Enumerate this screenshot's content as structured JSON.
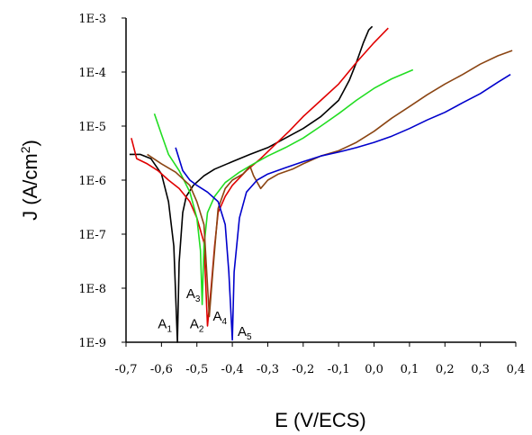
{
  "chart_data": {
    "type": "line",
    "title": "",
    "xlabel": "E (V/ECS)",
    "ylabel_main": "J (A/cm",
    "ylabel_sup": "2",
    "ylabel_close": ")",
    "x_scale": "linear",
    "y_scale": "log",
    "xlim": [
      -0.7,
      0.4
    ],
    "ylim": [
      1e-09,
      0.001
    ],
    "x_ticks": [
      -0.7,
      -0.6,
      -0.5,
      -0.4,
      -0.3,
      -0.2,
      -0.1,
      0.0,
      0.1,
      0.2,
      0.3,
      0.4
    ],
    "x_tick_labels": [
      "-0,7",
      "-0,6",
      "-0,5",
      "-0,4",
      "-0,3",
      "-0,2",
      "-0,1",
      "0,0",
      "0,1",
      "0,2",
      "0,3",
      "0,4"
    ],
    "y_ticks": [
      1e-09,
      1e-08,
      1e-07,
      1e-06,
      1e-05,
      0.0001,
      0.001
    ],
    "y_tick_labels": [
      "1E-9",
      "1E-8",
      "1E-7",
      "1E-6",
      "1E-5",
      "1E-4",
      "1E-3"
    ],
    "grid": false,
    "legend": "none",
    "series": [
      {
        "color": "#000000",
        "points": [
          [
            -0.69,
            3e-06
          ],
          [
            -0.66,
            3e-06
          ],
          [
            -0.63,
            2.5e-06
          ],
          [
            -0.6,
            1.3e-06
          ],
          [
            -0.58,
            4e-07
          ],
          [
            -0.565,
            6e-08
          ],
          [
            -0.555,
            1e-09
          ],
          [
            -0.55,
            3e-08
          ],
          [
            -0.54,
            2.5e-07
          ],
          [
            -0.53,
            5e-07
          ],
          [
            -0.51,
            8e-07
          ],
          [
            -0.48,
            1.2e-06
          ],
          [
            -0.45,
            1.6e-06
          ],
          [
            -0.4,
            2.2e-06
          ],
          [
            -0.35,
            3e-06
          ],
          [
            -0.3,
            4e-06
          ],
          [
            -0.25,
            6e-06
          ],
          [
            -0.2,
            9e-06
          ],
          [
            -0.15,
            1.5e-05
          ],
          [
            -0.1,
            3e-05
          ],
          [
            -0.07,
            7e-05
          ],
          [
            -0.05,
            0.00015
          ],
          [
            -0.03,
            0.00035
          ],
          [
            -0.015,
            0.0006
          ],
          [
            -0.005,
            0.0007
          ]
        ]
      },
      {
        "color": "#e00000",
        "points": [
          [
            -0.685,
            6e-06
          ],
          [
            -0.67,
            2.5e-06
          ],
          [
            -0.64,
            2e-06
          ],
          [
            -0.61,
            1.5e-06
          ],
          [
            -0.58,
            1e-06
          ],
          [
            -0.55,
            7e-07
          ],
          [
            -0.52,
            4e-07
          ],
          [
            -0.5,
            2e-07
          ],
          [
            -0.48,
            7e-08
          ],
          [
            -0.47,
            2e-09
          ],
          [
            -0.46,
            1e-08
          ],
          [
            -0.45,
            6e-08
          ],
          [
            -0.44,
            2.5e-07
          ],
          [
            -0.42,
            5e-07
          ],
          [
            -0.4,
            8e-07
          ],
          [
            -0.36,
            1.5e-06
          ],
          [
            -0.32,
            2.5e-06
          ],
          [
            -0.28,
            4.5e-06
          ],
          [
            -0.24,
            8e-06
          ],
          [
            -0.2,
            1.5e-05
          ],
          [
            -0.15,
            3e-05
          ],
          [
            -0.1,
            6e-05
          ],
          [
            -0.05,
            0.00015
          ],
          [
            0.0,
            0.00035
          ],
          [
            0.04,
            0.00065
          ]
        ]
      },
      {
        "color": "#22dd22",
        "points": [
          [
            -0.62,
            1.7e-05
          ],
          [
            -0.6,
            7e-06
          ],
          [
            -0.58,
            3e-06
          ],
          [
            -0.55,
            1.5e-06
          ],
          [
            -0.52,
            6e-07
          ],
          [
            -0.5,
            2e-07
          ],
          [
            -0.49,
            5e-08
          ],
          [
            -0.485,
            5e-09
          ],
          [
            -0.48,
            6e-08
          ],
          [
            -0.47,
            2.5e-07
          ],
          [
            -0.45,
            5e-07
          ],
          [
            -0.42,
            9e-07
          ],
          [
            -0.38,
            1.4e-06
          ],
          [
            -0.34,
            2e-06
          ],
          [
            -0.3,
            2.8e-06
          ],
          [
            -0.25,
            4e-06
          ],
          [
            -0.2,
            6e-06
          ],
          [
            -0.15,
            1e-05
          ],
          [
            -0.1,
            1.7e-05
          ],
          [
            -0.05,
            3e-05
          ],
          [
            0.0,
            5e-05
          ],
          [
            0.05,
            7.5e-05
          ],
          [
            0.11,
            0.00011
          ]
        ]
      },
      {
        "color": "#8b4513",
        "points": [
          [
            -0.64,
            3e-06
          ],
          [
            -0.6,
            2e-06
          ],
          [
            -0.56,
            1.4e-06
          ],
          [
            -0.52,
            8e-07
          ],
          [
            -0.5,
            4e-07
          ],
          [
            -0.48,
            1.5e-07
          ],
          [
            -0.465,
            3e-09
          ],
          [
            -0.455,
            2e-08
          ],
          [
            -0.44,
            3e-07
          ],
          [
            -0.42,
            7e-07
          ],
          [
            -0.4,
            1e-06
          ],
          [
            -0.37,
            1.3e-06
          ],
          [
            -0.35,
            1.8e-06
          ],
          [
            -0.34,
            1.2e-06
          ],
          [
            -0.32,
            7e-07
          ],
          [
            -0.3,
            1e-06
          ],
          [
            -0.27,
            1.3e-06
          ],
          [
            -0.23,
            1.6e-06
          ],
          [
            -0.2,
            2e-06
          ],
          [
            -0.15,
            2.8e-06
          ],
          [
            -0.1,
            3.5e-06
          ],
          [
            -0.05,
            5e-06
          ],
          [
            0.0,
            8e-06
          ],
          [
            0.05,
            1.4e-05
          ],
          [
            0.1,
            2.3e-05
          ],
          [
            0.15,
            3.8e-05
          ],
          [
            0.2,
            6e-05
          ],
          [
            0.25,
            9e-05
          ],
          [
            0.3,
            0.00014
          ],
          [
            0.35,
            0.0002
          ],
          [
            0.39,
            0.00025
          ]
        ]
      },
      {
        "color": "#0000cc",
        "points": [
          [
            -0.56,
            4e-06
          ],
          [
            -0.54,
            1.5e-06
          ],
          [
            -0.52,
            1e-06
          ],
          [
            -0.5,
            8e-07
          ],
          [
            -0.47,
            6e-07
          ],
          [
            -0.44,
            4e-07
          ],
          [
            -0.42,
            1.5e-07
          ],
          [
            -0.41,
            2e-08
          ],
          [
            -0.4,
            1.1e-09
          ],
          [
            -0.395,
            2e-08
          ],
          [
            -0.38,
            2e-07
          ],
          [
            -0.36,
            6e-07
          ],
          [
            -0.33,
            1e-06
          ],
          [
            -0.3,
            1.3e-06
          ],
          [
            -0.25,
            1.7e-06
          ],
          [
            -0.2,
            2.2e-06
          ],
          [
            -0.15,
            2.8e-06
          ],
          [
            -0.1,
            3.3e-06
          ],
          [
            -0.05,
            4e-06
          ],
          [
            0.0,
            5e-06
          ],
          [
            0.05,
            6.5e-06
          ],
          [
            0.1,
            9e-06
          ],
          [
            0.15,
            1.3e-05
          ],
          [
            0.2,
            1.8e-05
          ],
          [
            0.25,
            2.7e-05
          ],
          [
            0.3,
            4e-05
          ],
          [
            0.35,
            6.5e-05
          ],
          [
            0.385,
            9e-05
          ]
        ]
      }
    ],
    "annotations": [
      {
        "letter": "A",
        "sub": "1",
        "x": -0.61,
        "y": 1.8e-09
      },
      {
        "letter": "A",
        "sub": "2",
        "x": -0.52,
        "y": 1.8e-09
      },
      {
        "letter": "A",
        "sub": "3",
        "x": -0.53,
        "y": 6.5e-09
      },
      {
        "letter": "A",
        "sub": "4",
        "x": -0.455,
        "y": 2.5e-09
      },
      {
        "letter": "A",
        "sub": "5",
        "x": -0.385,
        "y": 1.3e-09
      }
    ]
  }
}
